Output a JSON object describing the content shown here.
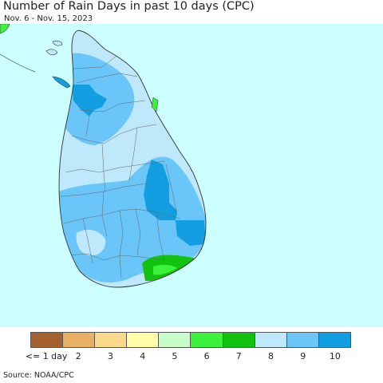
{
  "title": "Number of Rain Days in past 10 days (CPC)",
  "subtitle": "Nov. 6 - Nov. 15, 2023",
  "source": "Source: NOAA/CPC",
  "colors": {
    "ocean": "#ccffff",
    "c8": "#bfe9fb",
    "c9": "#6ac6f8",
    "c10": "#129ee0",
    "c7": "#11c20e",
    "c6": "#3df23a",
    "border": "#444444"
  },
  "legend": [
    {
      "label": "<= 1 day",
      "color": "#a5602f"
    },
    {
      "label": "2",
      "color": "#e8b064"
    },
    {
      "label": "3",
      "color": "#fdd98b"
    },
    {
      "label": "4",
      "color": "#fefea9"
    },
    {
      "label": "5",
      "color": "#c8fdc7"
    },
    {
      "label": "6",
      "color": "#3df23a"
    },
    {
      "label": "7",
      "color": "#11c20e"
    },
    {
      "label": "8",
      "color": "#bfe9fb"
    },
    {
      "label": "9",
      "color": "#6ac6f8"
    },
    {
      "label": "10",
      "color": "#129ee0"
    }
  ]
}
